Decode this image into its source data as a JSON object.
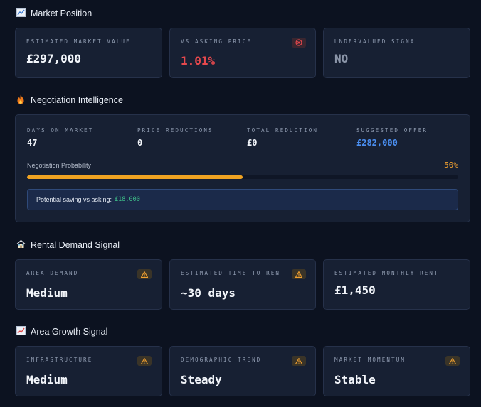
{
  "market_position": {
    "title": "Market Position",
    "icon": "chart-icon",
    "cards": [
      {
        "label": "ESTIMATED MARKET VALUE",
        "value": "£297,000"
      },
      {
        "label": "VS ASKING PRICE",
        "value": "1.01%",
        "badge_icon": "close-circle-icon"
      },
      {
        "label": "UNDERVALUED SIGNAL",
        "value": "NO"
      }
    ]
  },
  "negotiation": {
    "title": "Negotiation Intelligence",
    "icon": "fire-icon",
    "stats": [
      {
        "label": "DAYS ON MARKET",
        "value": "47"
      },
      {
        "label": "PRICE REDUCTIONS",
        "value": "0"
      },
      {
        "label": "TOTAL REDUCTION",
        "value": "£0"
      },
      {
        "label": "SUGGESTED OFFER",
        "value": "£282,000"
      }
    ],
    "probability_label": "Negotiation Probability",
    "probability_text": "50%",
    "probability_value": 0.5,
    "saving_label": "Potential saving vs asking:",
    "saving_value": "£18,000"
  },
  "rental_demand": {
    "title": "Rental Demand Signal",
    "icon": "house-icon",
    "cards": [
      {
        "label": "AREA DEMAND",
        "value": "Medium",
        "badge_icon": "warning-icon"
      },
      {
        "label": "ESTIMATED TIME TO RENT",
        "value": "~30 days",
        "badge_icon": "warning-icon"
      },
      {
        "label": "ESTIMATED MONTHLY RENT",
        "value": "£1,450"
      }
    ]
  },
  "area_growth": {
    "title": "Area Growth Signal",
    "icon": "trend-up-icon",
    "cards": [
      {
        "label": "INFRASTRUCTURE",
        "value": "Medium",
        "badge_icon": "warning-icon"
      },
      {
        "label": "DEMOGRAPHIC TREND",
        "value": "Steady",
        "badge_icon": "warning-icon"
      },
      {
        "label": "MARKET MOMENTUM",
        "value": "Stable",
        "badge_icon": "warning-icon"
      }
    ]
  },
  "colors": {
    "accent_orange": "#f0a322",
    "negative_red": "#e5484d",
    "offer_blue": "#4a8ef0",
    "saving_green": "#3fc08a"
  }
}
